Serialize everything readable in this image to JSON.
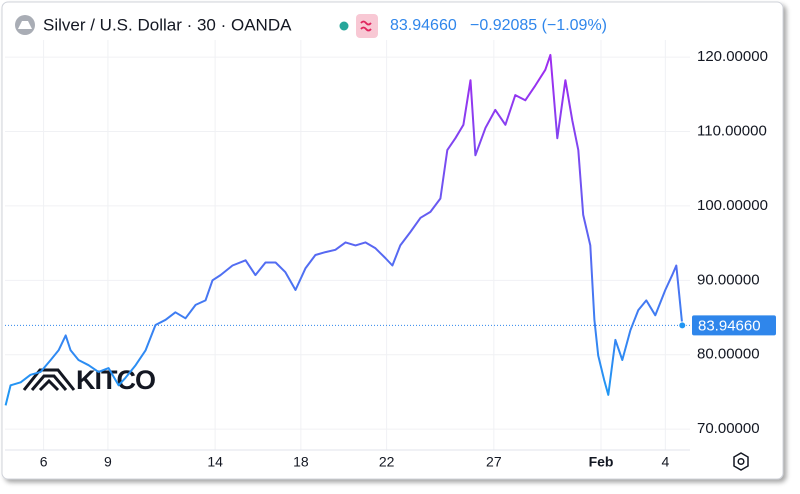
{
  "chart_data": {
    "type": "line",
    "title": "Silver / U.S. Dollar · 30 · OANDA",
    "price": "83.94660",
    "change": "−0.92085 (−1.09%)",
    "watermark": "KITCO",
    "series": [
      {
        "name": "Silver / U.S. Dollar",
        "x": [
          4.23,
          4.46,
          4.93,
          5.39,
          5.86,
          6.33,
          6.7,
          7.03,
          7.26,
          7.63,
          8.1,
          8.56,
          9.03,
          9.5,
          9.82,
          10.29,
          10.76,
          11.22,
          11.69,
          12.15,
          12.62,
          13.09,
          13.55,
          13.88,
          14.25,
          14.81,
          15.42,
          15.88,
          16.35,
          16.82,
          17.28,
          17.75,
          18.21,
          18.68,
          19.15,
          19.61,
          20.08,
          20.55,
          21.01,
          21.48,
          21.94,
          22.27,
          22.64,
          23.11,
          23.58,
          24.04,
          24.51,
          24.83,
          25.21,
          25.58,
          25.91,
          26.14,
          26.61,
          27.07,
          27.54,
          28.0,
          28.47,
          28.94,
          29.4,
          29.64,
          29.96,
          30.34,
          30.66,
          30.94,
          31.17,
          31.5,
          31.69,
          31.87,
          32.15,
          32.34,
          32.67,
          32.99,
          33.37,
          33.74,
          34.11,
          34.53,
          35.0,
          35.32,
          35.51,
          35.79
        ],
        "values": [
          73.2,
          75.9,
          76.3,
          77.3,
          77.7,
          79.3,
          80.6,
          82.6,
          80.6,
          79.3,
          78.6,
          77.7,
          78.2,
          75.9,
          76.9,
          78.6,
          80.6,
          84.0,
          84.7,
          85.7,
          84.9,
          86.7,
          87.3,
          90.0,
          90.7,
          92.0,
          92.7,
          90.7,
          92.4,
          92.4,
          91.1,
          88.7,
          91.6,
          93.4,
          93.8,
          94.1,
          95.1,
          94.7,
          95.1,
          94.3,
          93.0,
          92.0,
          94.7,
          96.5,
          98.4,
          99.2,
          101.0,
          107.5,
          109.1,
          110.9,
          116.9,
          106.8,
          110.5,
          112.9,
          110.9,
          114.9,
          114.2,
          116.2,
          118.3,
          120.3,
          109.1,
          116.9,
          111.5,
          107.5,
          98.8,
          94.7,
          84.7,
          79.9,
          76.6,
          74.6,
          82.0,
          79.3,
          83.3,
          86.0,
          87.3,
          85.3,
          88.7,
          90.7,
          92.0,
          83.9466
        ]
      }
    ],
    "gradient": {
      "low": "#2196f3",
      "high": "#9c2ef0"
    },
    "last_price": {
      "value": 83.9466,
      "label": "83.94660"
    },
    "tag_color": "#2f86eb",
    "xlim": [
      4.2,
      36.15
    ],
    "xticks": [
      6,
      9,
      14,
      18,
      22,
      27,
      {
        "value": 32,
        "label": "Feb"
      },
      {
        "value": 35,
        "label": "4"
      }
    ],
    "ylim": [
      67.2,
      122.3
    ],
    "yticks": [
      {
        "value": 70,
        "label": "70.00000"
      },
      {
        "value": 80,
        "label": "80.00000"
      },
      {
        "value": 90,
        "label": "90.00000"
      },
      {
        "value": 100,
        "label": "100.00000"
      },
      {
        "value": 110,
        "label": "110.00000"
      },
      {
        "value": 120,
        "label": "120.00000"
      }
    ],
    "grid": true
  }
}
